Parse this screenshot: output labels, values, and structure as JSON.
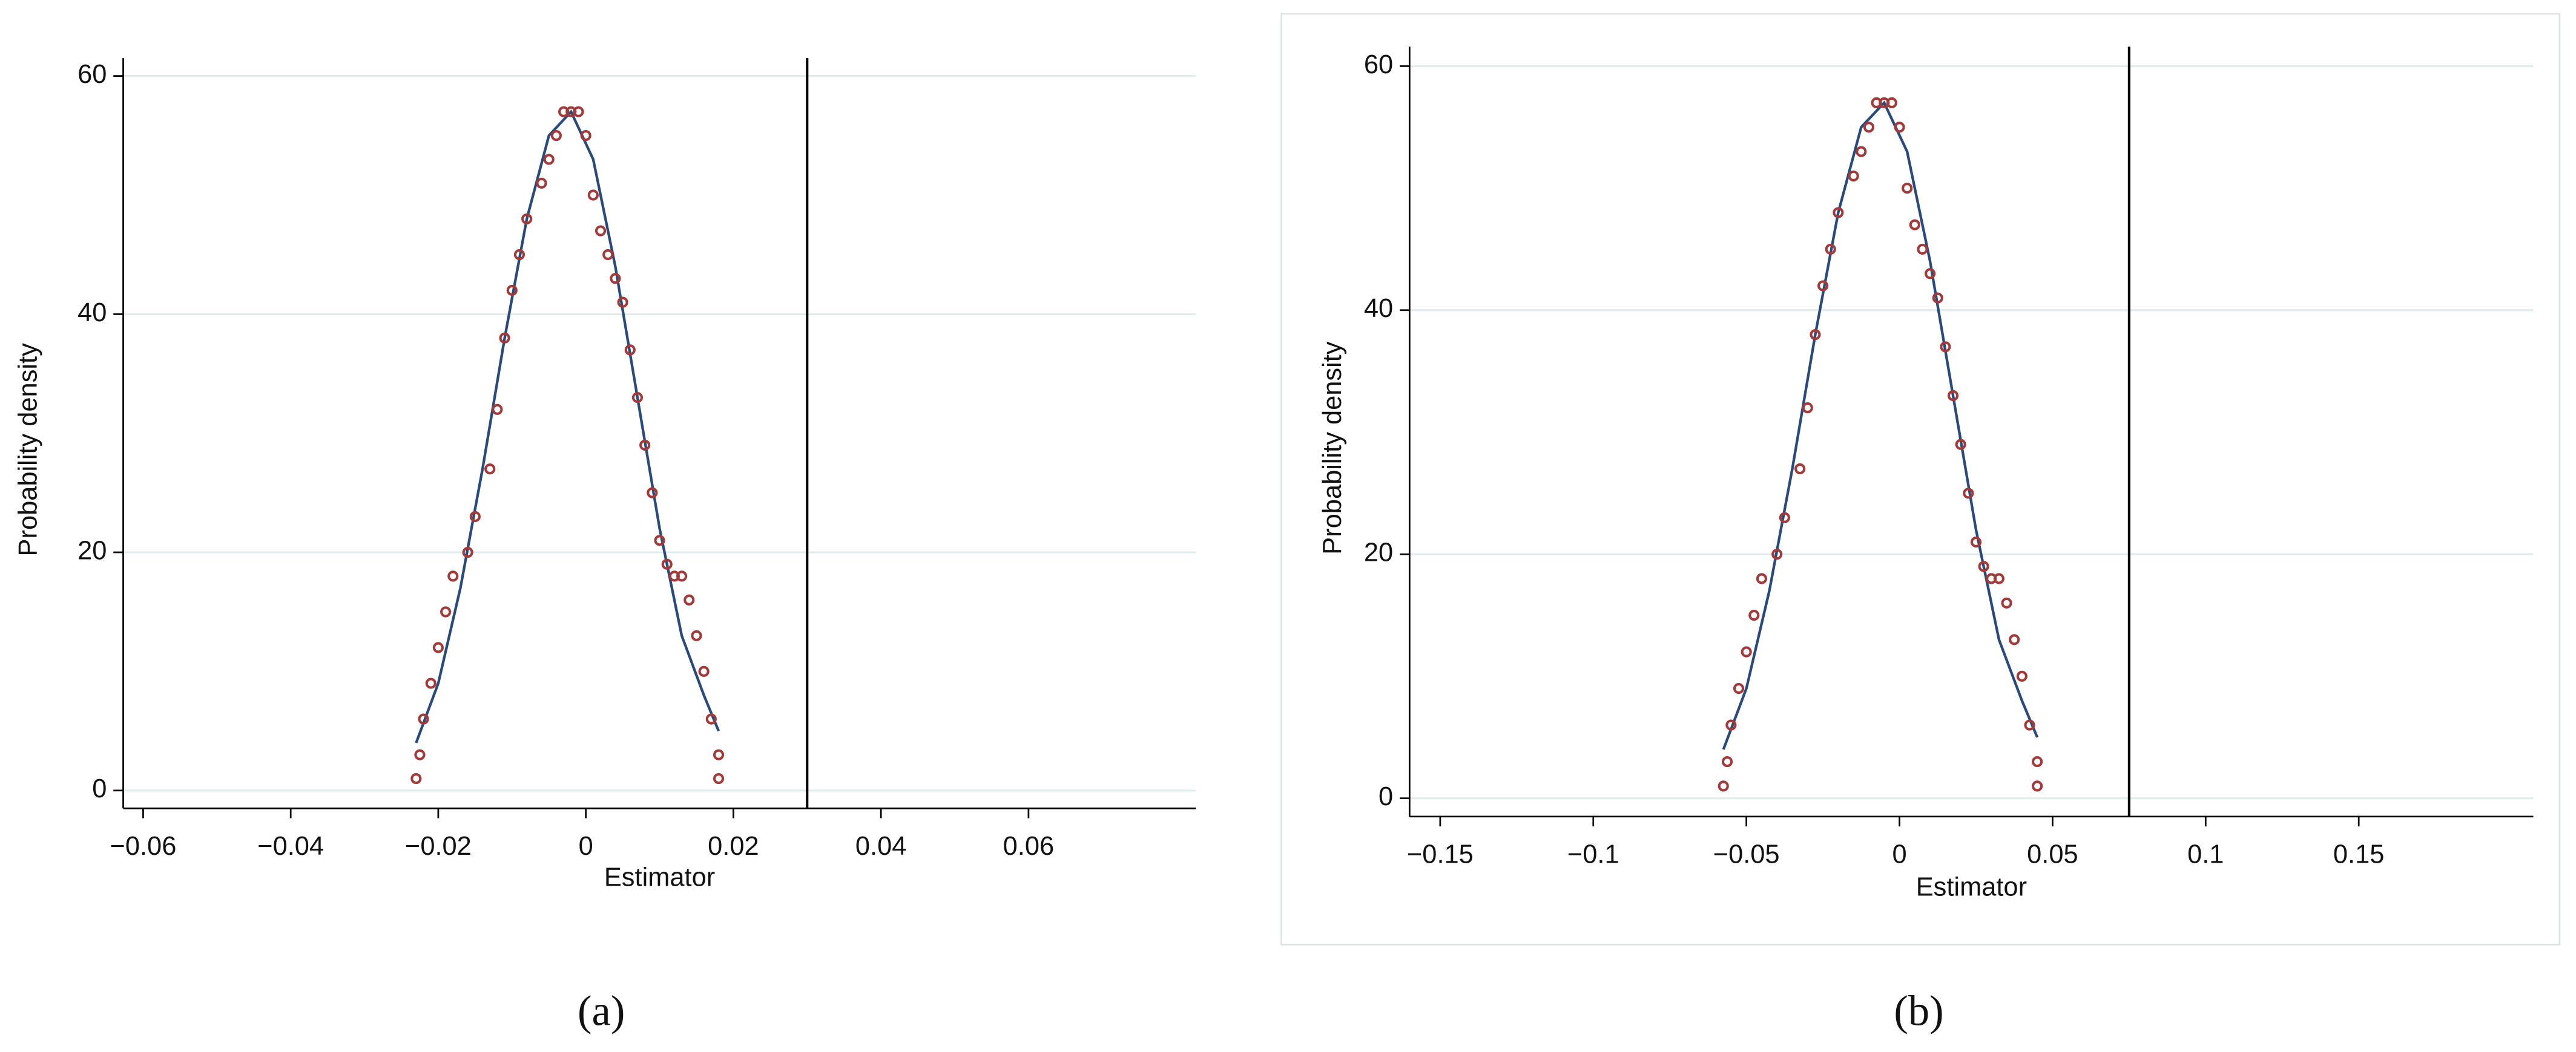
{
  "chart_data": [
    {
      "type": "scatter",
      "xlabel": "Estimator",
      "ylabel": "Probability density",
      "panel_label": "(a)",
      "x": [
        -0.023,
        -0.0225,
        -0.022,
        -0.021,
        -0.02,
        -0.019,
        -0.018,
        -0.016,
        -0.015,
        -0.013,
        -0.012,
        -0.011,
        -0.01,
        -0.009,
        -0.008,
        -0.006,
        -0.005,
        -0.004,
        -0.003,
        -0.002,
        -0.001,
        0,
        0.001,
        0.002,
        0.003,
        0.004,
        0.005,
        0.006,
        0.007,
        0.008,
        0.009,
        0.01,
        0.011,
        0.012,
        0.013,
        0.014,
        0.015,
        0.016,
        0.017,
        0.018,
        0.018
      ],
      "series": [
        {
          "type": "scatter",
          "color": "#a13b3b",
          "values": [
            1,
            3,
            6,
            9,
            12,
            15,
            18,
            20,
            23,
            27,
            32,
            38,
            42,
            45,
            48,
            51,
            53,
            55,
            57,
            57,
            57,
            55,
            50,
            47,
            45,
            43,
            41,
            37,
            33,
            29,
            25,
            21,
            19,
            18,
            18,
            16,
            13,
            10,
            6,
            3,
            1
          ]
        },
        {
          "type": "line",
          "color": "#2b4a7a",
          "x": [
            -0.023,
            -0.02,
            -0.017,
            -0.014,
            -0.011,
            -0.008,
            -0.005,
            -0.002,
            0.001,
            0.004,
            0.007,
            0.01,
            0.013,
            0.016,
            0.018
          ],
          "values": [
            4,
            9,
            17,
            27,
            38,
            48,
            55,
            57,
            53,
            44,
            33,
            22,
            13,
            8,
            5
          ]
        }
      ],
      "vline": 0.03,
      "xlim": [
        -0.0627,
        0.0827
      ],
      "ylim": [
        -1.5,
        61.5
      ],
      "xticks": [
        {
          "value": -0.06,
          "label": "−0.06"
        },
        {
          "value": -0.04,
          "label": "−0.04"
        },
        {
          "value": -0.02,
          "label": "−0.02"
        },
        0,
        0.02,
        0.04,
        0.06
      ],
      "yticks": [
        0,
        20,
        40,
        60
      ],
      "grid": true
    },
    {
      "type": "scatter",
      "xlabel": "Estimator",
      "ylabel": "Probability density",
      "panel_label": "(b)",
      "x": [
        -0.0575,
        -0.05625,
        -0.055,
        -0.0525,
        -0.05,
        -0.0475,
        -0.045,
        -0.04,
        -0.0375,
        -0.0325,
        -0.03,
        -0.0275,
        -0.025,
        -0.0225,
        -0.02,
        -0.015,
        -0.0125,
        -0.01,
        -0.0075,
        -0.005,
        -0.0025,
        0,
        0.0025,
        0.005,
        0.0075,
        0.01,
        0.0125,
        0.015,
        0.0175,
        0.02,
        0.0225,
        0.025,
        0.0275,
        0.03,
        0.0325,
        0.035,
        0.0375,
        0.04,
        0.0425,
        0.045,
        0.045
      ],
      "series": [
        {
          "type": "scatter",
          "color": "#a13b3b",
          "values": [
            1,
            3,
            6,
            9,
            12,
            15,
            18,
            20,
            23,
            27,
            32,
            38,
            42,
            45,
            48,
            51,
            53,
            55,
            57,
            57,
            57,
            55,
            50,
            47,
            45,
            43,
            41,
            37,
            33,
            29,
            25,
            21,
            19,
            18,
            18,
            16,
            13,
            10,
            6,
            3,
            1
          ]
        },
        {
          "type": "line",
          "color": "#2b4a7a",
          "x": [
            -0.0575,
            -0.05,
            -0.0425,
            -0.035,
            -0.0275,
            -0.02,
            -0.0125,
            -0.005,
            0.0025,
            0.01,
            0.0175,
            0.025,
            0.0325,
            0.04,
            0.045
          ],
          "values": [
            4,
            9,
            17,
            27,
            38,
            48,
            55,
            57,
            53,
            44,
            33,
            22,
            13,
            8,
            5
          ]
        }
      ],
      "vline": 0.075,
      "xlim": [
        -0.16,
        0.207
      ],
      "ylim": [
        -1.5,
        61.6
      ],
      "xticks": [
        {
          "value": -0.15,
          "label": "−0.15"
        },
        {
          "value": -0.1,
          "label": "−0.1"
        },
        {
          "value": -0.05,
          "label": "−0.05"
        },
        0,
        0.05,
        0.1,
        0.15
      ],
      "yticks": [
        0,
        20,
        40,
        60
      ],
      "grid": true
    }
  ]
}
